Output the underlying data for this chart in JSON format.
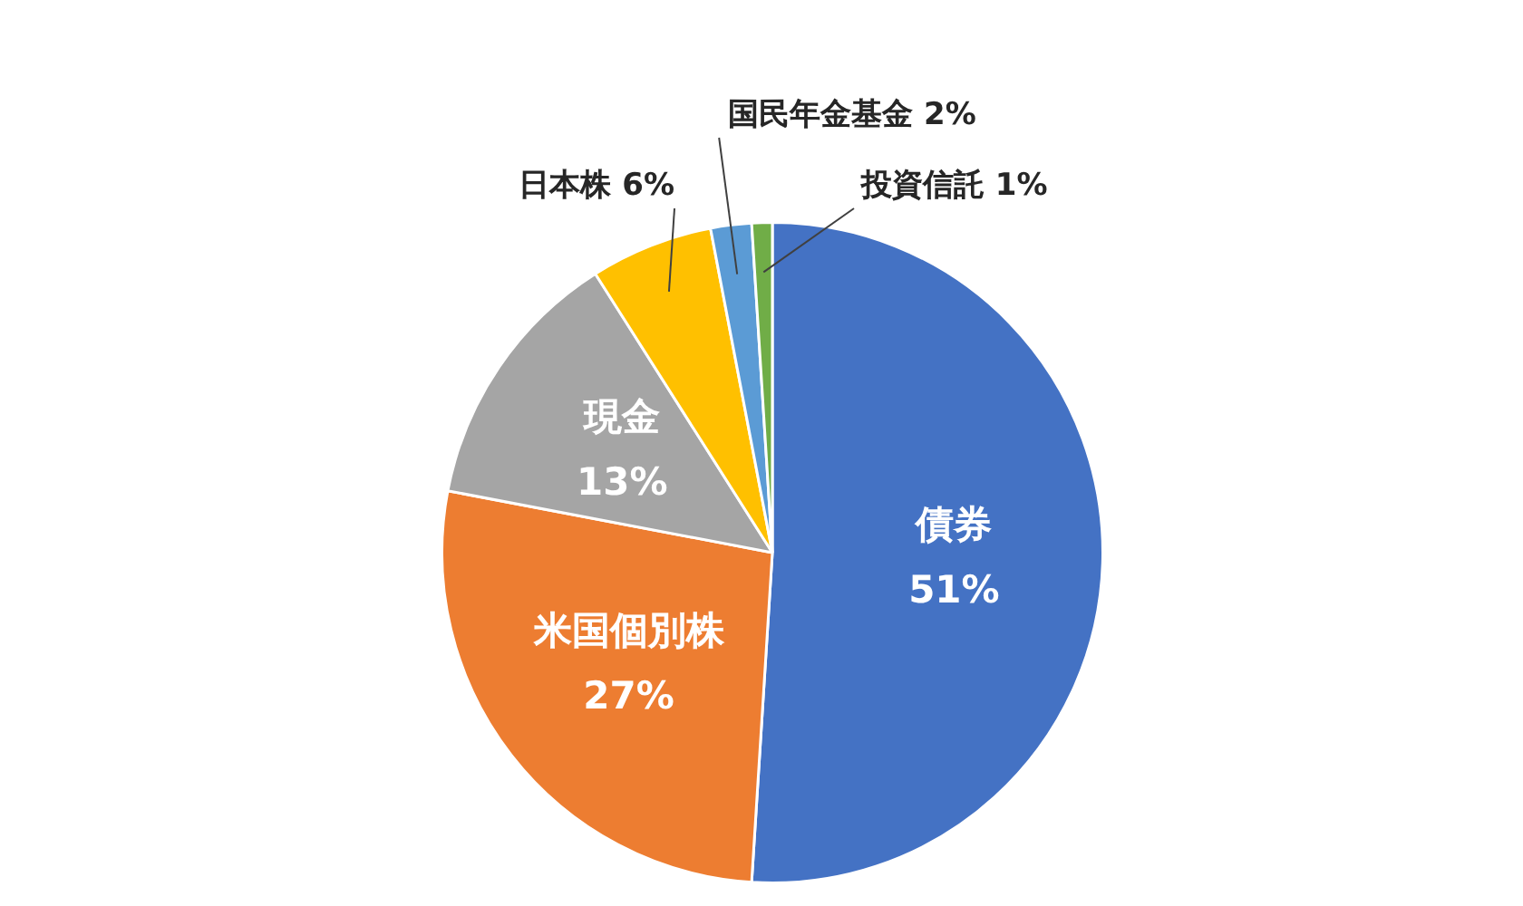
{
  "chart_data": {
    "type": "pie",
    "categories": [
      "債券",
      "米国個別株",
      "現金",
      "日本株",
      "国民年金基金",
      "投資信託"
    ],
    "values": [
      51,
      27,
      13,
      6,
      2,
      1
    ],
    "colors": [
      "#4472c4",
      "#ed7d31",
      "#a5a5a5",
      "#ffc000",
      "#5b9bd5",
      "#70ad47"
    ],
    "value_labels": [
      "51%",
      "27%",
      "13%",
      "6%",
      "2%",
      "1%"
    ],
    "legend": false
  }
}
